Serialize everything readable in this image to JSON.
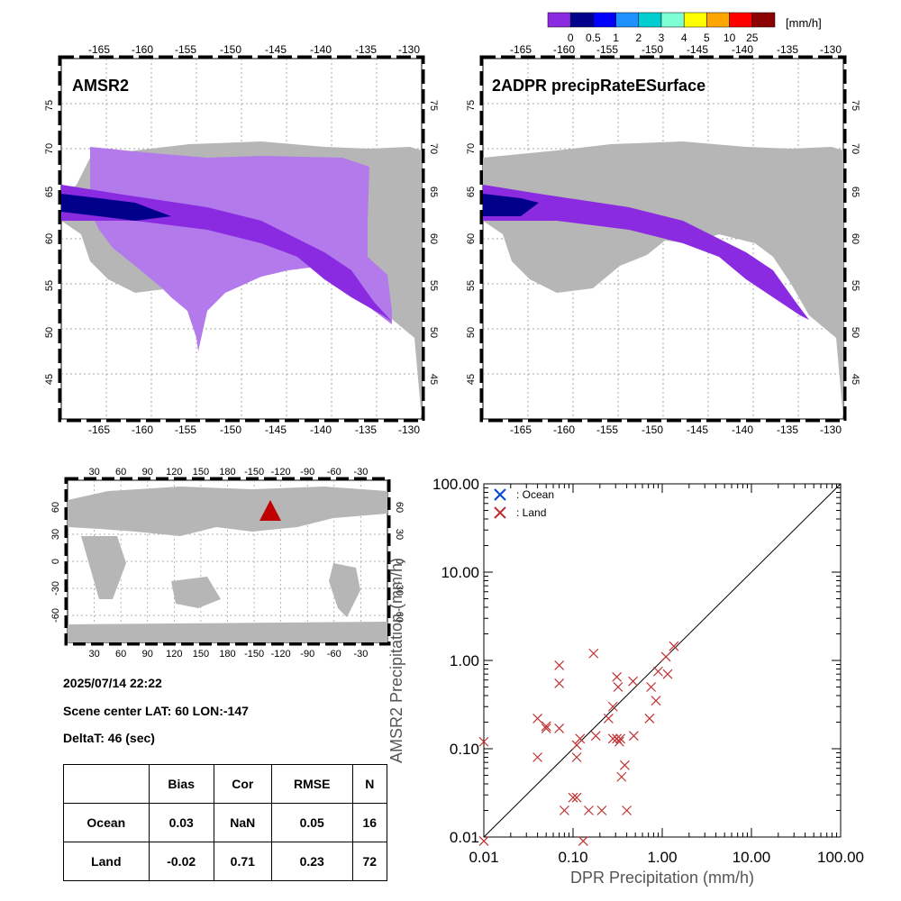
{
  "colorbar": {
    "unit": "[mm/h]",
    "ticks": [
      "0",
      "0.5",
      "1",
      "2",
      "3",
      "4",
      "5",
      "10",
      "25"
    ],
    "colors": [
      "#8a2be2",
      "#00008b",
      "#0000ff",
      "#1e90ff",
      "#00ced1",
      "#7fffd4",
      "#ffff00",
      "#ffa500",
      "#ff0000",
      "#8b0000"
    ]
  },
  "map_amsr2": {
    "title": "AMSR2",
    "lon_ticks": [
      "-165",
      "-160",
      "-155",
      "-150",
      "-145",
      "-140",
      "-135",
      "-130"
    ],
    "lat_ticks": [
      "75",
      "70",
      "65",
      "60",
      "55",
      "50",
      "45"
    ]
  },
  "map_dpr": {
    "title": "2ADPR precipRateESurface",
    "lon_ticks": [
      "-165",
      "-160",
      "-155",
      "-150",
      "-145",
      "-140",
      "-135",
      "-130"
    ],
    "lat_ticks": [
      "75",
      "70",
      "65",
      "60",
      "55",
      "50",
      "45"
    ]
  },
  "globe": {
    "top_ticks": [
      "30",
      "60",
      "90",
      "120",
      "150",
      "180",
      "-150",
      "-120",
      "-90",
      "-60",
      "-30"
    ],
    "lat_ticks": [
      "60",
      "30",
      "0",
      "-30",
      "-60"
    ],
    "marker_color": "#c00000"
  },
  "info": {
    "datetime": "2025/07/14 22:22",
    "scene_center": "Scene center LAT: 60   LON:-147",
    "delta": "DeltaT:   46 (sec)"
  },
  "stats": {
    "headers": [
      "",
      "Bias",
      "Cor",
      "RMSE",
      "N"
    ],
    "rows": [
      [
        "Ocean",
        "0.03",
        "NaN",
        "0.05",
        "16"
      ],
      [
        "Land",
        "-0.02",
        "0.71",
        "0.23",
        "72"
      ]
    ]
  },
  "chart_data": {
    "type": "scatter",
    "xlabel": "DPR Precipitation (mm/h)",
    "ylabel": "AMSR2 Precipitation (mm/h)",
    "xscale": "log",
    "yscale": "log",
    "xlim": [
      0.01,
      100
    ],
    "ylim": [
      0.01,
      100
    ],
    "x_tick_labels": [
      "0.01",
      "0.10",
      "1.00",
      "10.00",
      "100.00"
    ],
    "y_tick_labels": [
      "0.01",
      "0.10",
      "1.00",
      "10.00",
      "100.00"
    ],
    "legend_position": "top-left",
    "reference_line": "1:1",
    "series": [
      {
        "name": ": Ocean",
        "marker": "x",
        "color": "#0047d6",
        "points": []
      },
      {
        "name": ": Land",
        "marker": "x",
        "color": "#c03030",
        "points": [
          [
            0.01,
            0.12
          ],
          [
            0.01,
            0.009
          ],
          [
            0.04,
            0.22
          ],
          [
            0.04,
            0.08
          ],
          [
            0.05,
            0.18
          ],
          [
            0.05,
            0.17
          ],
          [
            0.07,
            0.88
          ],
          [
            0.07,
            0.55
          ],
          [
            0.07,
            0.17
          ],
          [
            0.08,
            0.02
          ],
          [
            0.1,
            0.028
          ],
          [
            0.11,
            0.028
          ],
          [
            0.11,
            0.11
          ],
          [
            0.11,
            0.08
          ],
          [
            0.12,
            0.13
          ],
          [
            0.13,
            0.009
          ],
          [
            0.15,
            0.02
          ],
          [
            0.17,
            1.2
          ],
          [
            0.18,
            0.14
          ],
          [
            0.21,
            0.02
          ],
          [
            0.25,
            0.22
          ],
          [
            0.28,
            0.3
          ],
          [
            0.28,
            0.13
          ],
          [
            0.31,
            0.13
          ],
          [
            0.31,
            0.65
          ],
          [
            0.32,
            0.5
          ],
          [
            0.33,
            0.12
          ],
          [
            0.34,
            0.13
          ],
          [
            0.35,
            0.048
          ],
          [
            0.38,
            0.065
          ],
          [
            0.4,
            0.02
          ],
          [
            0.47,
            0.58
          ],
          [
            0.48,
            0.14
          ],
          [
            0.72,
            0.22
          ],
          [
            0.75,
            0.5
          ],
          [
            0.85,
            0.35
          ],
          [
            0.9,
            0.75
          ],
          [
            1.1,
            1.1
          ],
          [
            1.15,
            0.7
          ],
          [
            1.35,
            1.45
          ]
        ]
      }
    ]
  }
}
